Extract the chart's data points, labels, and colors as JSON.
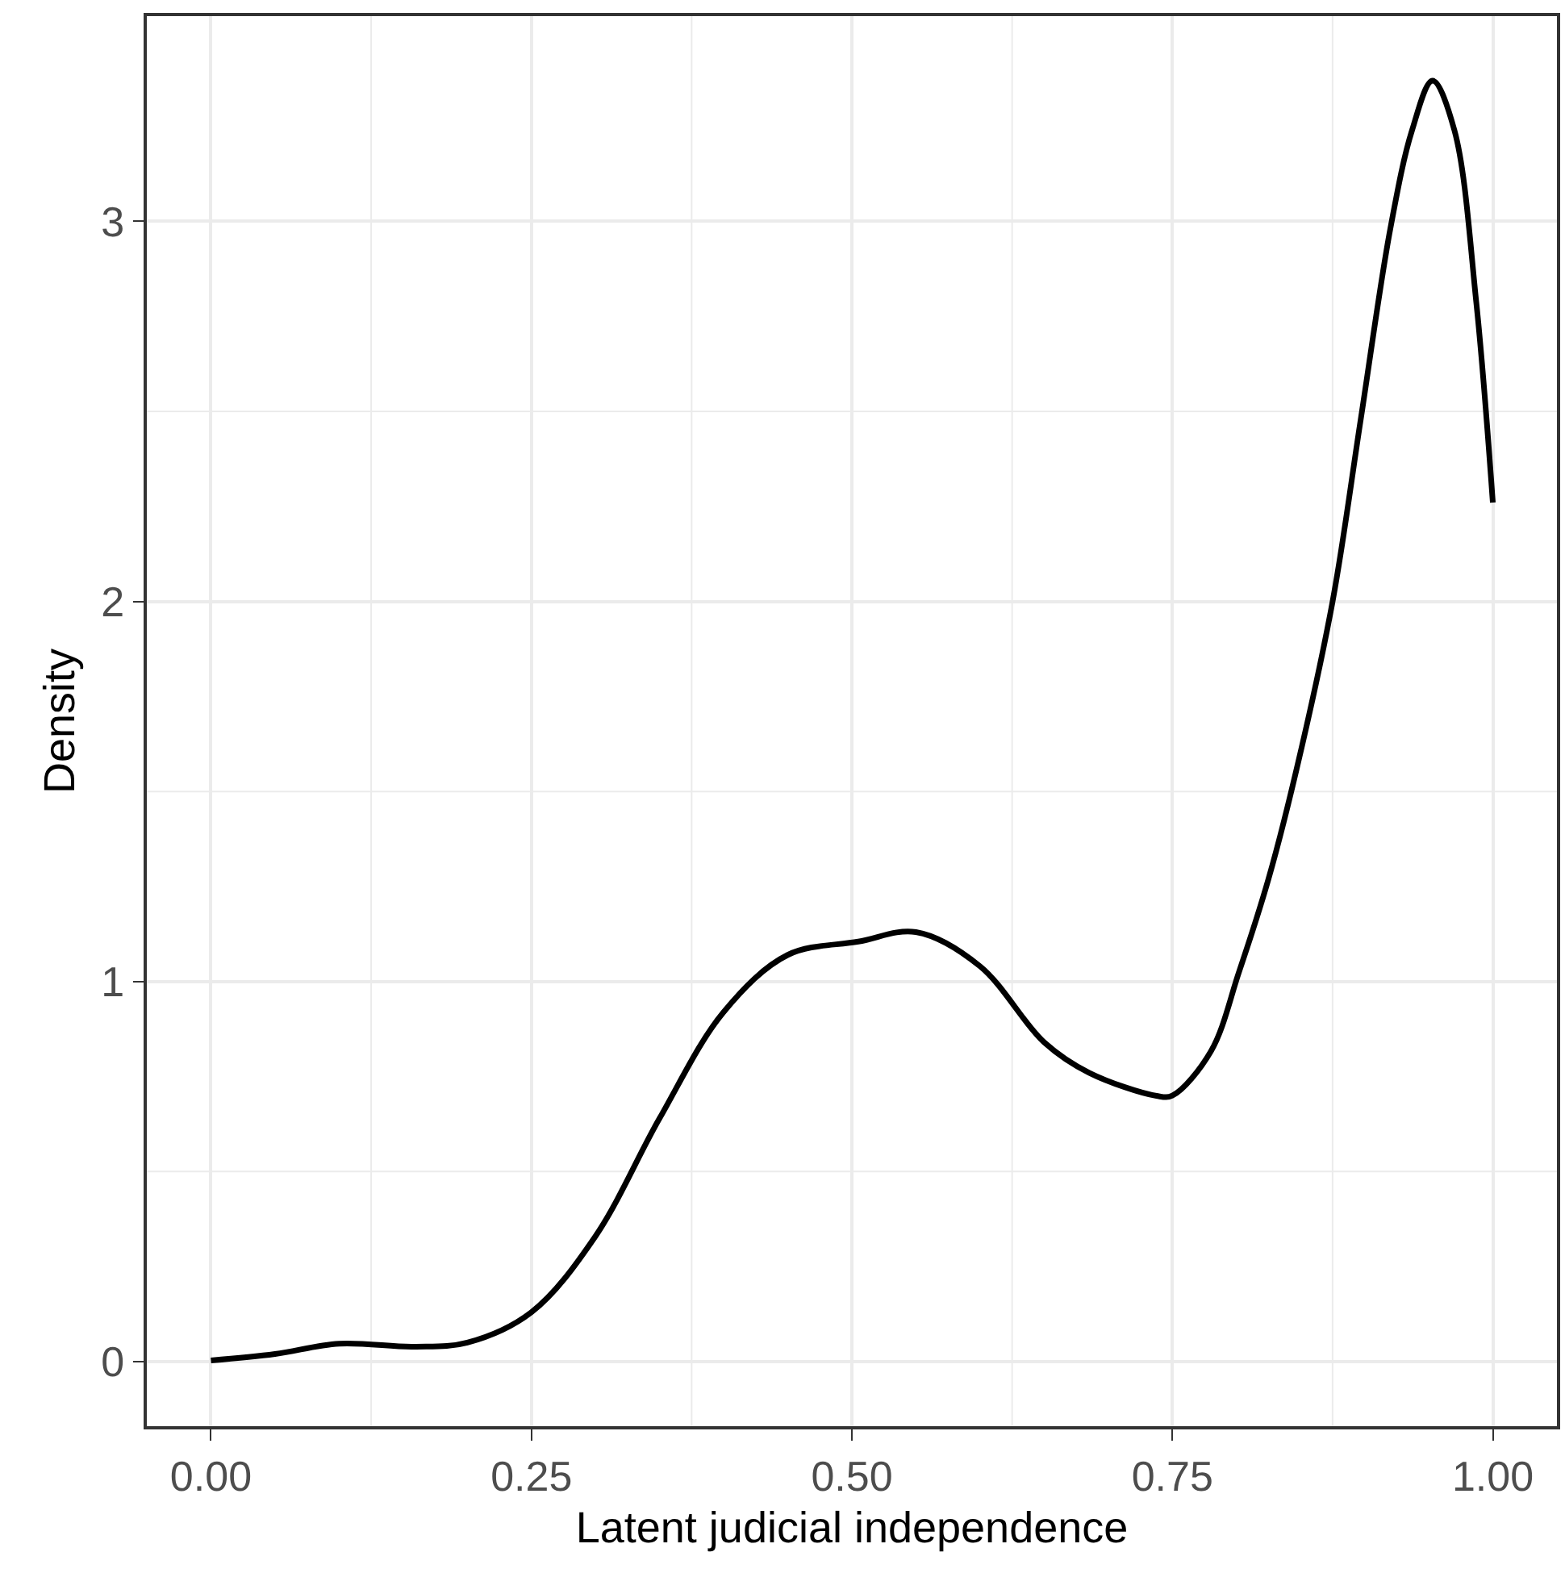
{
  "chart_data": {
    "type": "line",
    "xlabel": "Latent judicial independence",
    "ylabel": "Density",
    "x": [
      0,
      0.05,
      0.1,
      0.16,
      0.2,
      0.25,
      0.3,
      0.35,
      0.4,
      0.45,
      0.505,
      0.55,
      0.6,
      0.65,
      0.685,
      0.7377,
      0.75,
      0.78,
      0.802,
      0.825,
      0.847,
      0.875,
      0.897,
      0.92,
      0.937,
      0.953,
      0.97,
      0.987,
      1.0
    ],
    "series": [
      {
        "color": "#000000",
        "values": [
          0.003,
          0.02,
          0.047,
          0.039,
          0.05,
          0.13,
          0.33,
          0.64,
          0.92,
          1.07,
          1.105,
          1.13,
          1.04,
          0.84,
          0.76,
          0.699,
          0.7,
          0.816,
          1.025,
          1.27,
          1.56,
          2.0,
          2.48,
          2.98,
          3.24,
          3.37,
          3.24,
          2.79,
          2.26
        ]
      }
    ],
    "xlim": [
      -0.05,
      1.05
    ],
    "ylim": [
      -0.17,
      3.54
    ],
    "xticks": [
      {
        "value": 0,
        "label": "0.00"
      },
      {
        "value": 0.25,
        "label": "0.25"
      },
      {
        "value": 0.5,
        "label": "0.50"
      },
      {
        "value": 0.75,
        "label": "0.75"
      },
      {
        "value": 1,
        "label": "1.00"
      }
    ],
    "yticks": [
      0,
      1,
      2,
      3
    ],
    "grid": true,
    "marker": "none",
    "line_style": "solid"
  }
}
